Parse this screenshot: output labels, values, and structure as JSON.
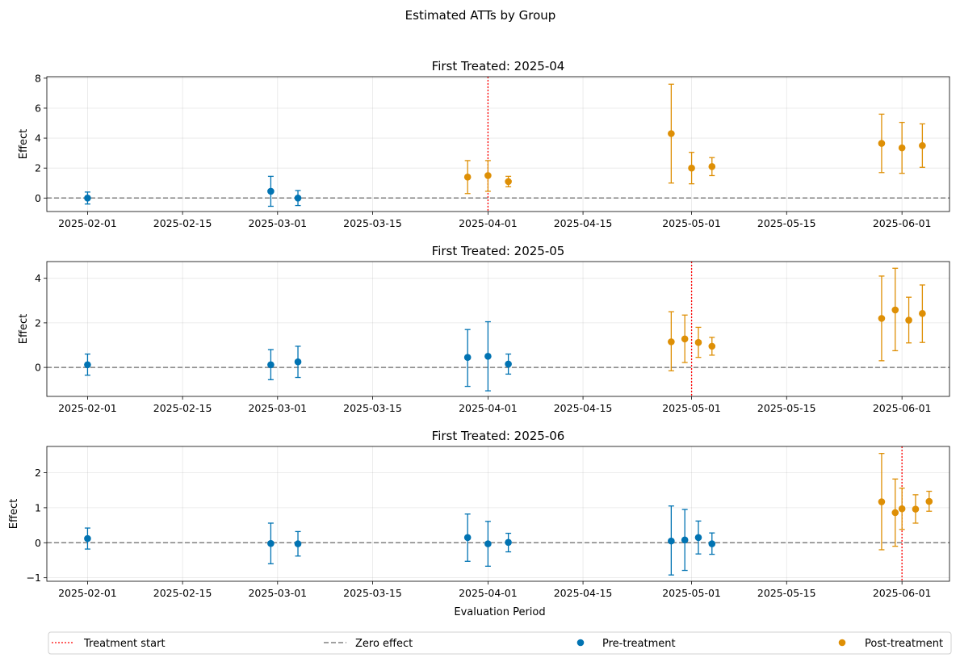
{
  "chart_data": {
    "type": "scatter",
    "title": "Estimated ATTs by Group",
    "xlabel": "Evaluation Period",
    "ylabel": "Effect",
    "x_range": [
      "2025-01-26",
      "2025-06-08"
    ],
    "x_ticks": [
      "2025-02-01",
      "2025-02-15",
      "2025-03-01",
      "2025-03-15",
      "2025-04-01",
      "2025-04-15",
      "2025-05-01",
      "2025-05-15",
      "2025-06-01"
    ],
    "grid": true,
    "legend": {
      "position": "bottom",
      "entries": [
        {
          "label": "Treatment start",
          "kind": "dotted-line",
          "color": "#ff0000"
        },
        {
          "label": "Zero effect",
          "kind": "dashed-line",
          "color": "#808080"
        },
        {
          "label": "Pre-treatment",
          "kind": "marker",
          "color": "#0173b2"
        },
        {
          "label": "Post-treatment",
          "kind": "marker",
          "color": "#de8f05"
        }
      ]
    },
    "colors": {
      "pre": "#0173b2",
      "post": "#de8f05",
      "treatment": "#ff0000",
      "zero": "#808080"
    },
    "panels": [
      {
        "title": "First Treated: 2025-04",
        "treatment_date": "2025-04-01",
        "ylim": [
          -0.9,
          8.1
        ],
        "yticks": [
          0,
          2,
          4,
          6,
          8
        ],
        "points": [
          {
            "date": "2025-02-01",
            "value": 0.0,
            "low": -0.4,
            "high": 0.4,
            "phase": "pre"
          },
          {
            "date": "2025-02-28",
            "value": 0.45,
            "low": -0.55,
            "high": 1.45,
            "phase": "pre"
          },
          {
            "date": "2025-03-04",
            "value": 0.0,
            "low": -0.5,
            "high": 0.5,
            "phase": "pre"
          },
          {
            "date": "2025-03-29",
            "value": 1.4,
            "low": 0.3,
            "high": 2.5,
            "phase": "post"
          },
          {
            "date": "2025-04-01",
            "value": 1.5,
            "low": 0.45,
            "high": 2.5,
            "phase": "post"
          },
          {
            "date": "2025-04-04",
            "value": 1.1,
            "low": 0.75,
            "high": 1.45,
            "phase": "post"
          },
          {
            "date": "2025-04-28",
            "value": 4.3,
            "low": 1.0,
            "high": 7.6,
            "phase": "post"
          },
          {
            "date": "2025-05-01",
            "value": 2.0,
            "low": 0.95,
            "high": 3.05,
            "phase": "post"
          },
          {
            "date": "2025-05-04",
            "value": 2.1,
            "low": 1.5,
            "high": 2.7,
            "phase": "post"
          },
          {
            "date": "2025-05-29",
            "value": 3.65,
            "low": 1.7,
            "high": 5.6,
            "phase": "post"
          },
          {
            "date": "2025-06-01",
            "value": 3.35,
            "low": 1.65,
            "high": 5.05,
            "phase": "post"
          },
          {
            "date": "2025-06-04",
            "value": 3.5,
            "low": 2.05,
            "high": 4.95,
            "phase": "post"
          }
        ]
      },
      {
        "title": "First Treated: 2025-05",
        "treatment_date": "2025-05-01",
        "ylim": [
          -1.3,
          4.75
        ],
        "yticks": [
          0,
          2,
          4
        ],
        "points": [
          {
            "date": "2025-02-01",
            "value": 0.12,
            "low": -0.35,
            "high": 0.6,
            "phase": "pre"
          },
          {
            "date": "2025-02-28",
            "value": 0.12,
            "low": -0.55,
            "high": 0.8,
            "phase": "pre"
          },
          {
            "date": "2025-03-04",
            "value": 0.25,
            "low": -0.45,
            "high": 0.95,
            "phase": "pre"
          },
          {
            "date": "2025-03-29",
            "value": 0.45,
            "low": -0.85,
            "high": 1.7,
            "phase": "pre"
          },
          {
            "date": "2025-04-01",
            "value": 0.5,
            "low": -1.05,
            "high": 2.05,
            "phase": "pre"
          },
          {
            "date": "2025-04-04",
            "value": 0.15,
            "low": -0.3,
            "high": 0.6,
            "phase": "pre"
          },
          {
            "date": "2025-04-28",
            "value": 1.15,
            "low": -0.15,
            "high": 2.5,
            "phase": "post"
          },
          {
            "date": "2025-04-30",
            "value": 1.28,
            "low": 0.22,
            "high": 2.35,
            "phase": "post"
          },
          {
            "date": "2025-05-02",
            "value": 1.12,
            "low": 0.45,
            "high": 1.8,
            "phase": "post"
          },
          {
            "date": "2025-05-04",
            "value": 0.95,
            "low": 0.55,
            "high": 1.35,
            "phase": "post"
          },
          {
            "date": "2025-05-29",
            "value": 2.2,
            "low": 0.3,
            "high": 4.1,
            "phase": "post"
          },
          {
            "date": "2025-05-31",
            "value": 2.58,
            "low": 0.75,
            "high": 4.45,
            "phase": "post"
          },
          {
            "date": "2025-06-02",
            "value": 2.12,
            "low": 1.1,
            "high": 3.15,
            "phase": "post"
          },
          {
            "date": "2025-06-04",
            "value": 2.42,
            "low": 1.12,
            "high": 3.7,
            "phase": "post"
          }
        ]
      },
      {
        "title": "First Treated: 2025-06",
        "treatment_date": "2025-06-01",
        "ylim": [
          -1.1,
          2.75
        ],
        "yticks": [
          -1,
          0,
          1,
          2
        ],
        "points": [
          {
            "date": "2025-02-01",
            "value": 0.12,
            "low": -0.18,
            "high": 0.42,
            "phase": "pre"
          },
          {
            "date": "2025-02-28",
            "value": -0.02,
            "low": -0.6,
            "high": 0.56,
            "phase": "pre"
          },
          {
            "date": "2025-03-04",
            "value": -0.03,
            "low": -0.38,
            "high": 0.32,
            "phase": "pre"
          },
          {
            "date": "2025-03-29",
            "value": 0.15,
            "low": -0.53,
            "high": 0.82,
            "phase": "pre"
          },
          {
            "date": "2025-04-01",
            "value": -0.03,
            "low": -0.67,
            "high": 0.61,
            "phase": "pre"
          },
          {
            "date": "2025-04-04",
            "value": 0.01,
            "low": -0.26,
            "high": 0.27,
            "phase": "pre"
          },
          {
            "date": "2025-04-28",
            "value": 0.05,
            "low": -0.92,
            "high": 1.05,
            "phase": "pre"
          },
          {
            "date": "2025-04-30",
            "value": 0.08,
            "low": -0.79,
            "high": 0.95,
            "phase": "pre"
          },
          {
            "date": "2025-05-02",
            "value": 0.15,
            "low": -0.32,
            "high": 0.62,
            "phase": "pre"
          },
          {
            "date": "2025-05-04",
            "value": -0.03,
            "low": -0.33,
            "high": 0.28,
            "phase": "pre"
          },
          {
            "date": "2025-05-29",
            "value": 1.17,
            "low": -0.2,
            "high": 2.55,
            "phase": "post"
          },
          {
            "date": "2025-05-31",
            "value": 0.86,
            "low": -0.1,
            "high": 1.82,
            "phase": "post"
          },
          {
            "date": "2025-06-01",
            "value": 0.97,
            "low": 0.38,
            "high": 1.56,
            "phase": "post"
          },
          {
            "date": "2025-06-03",
            "value": 0.96,
            "low": 0.56,
            "high": 1.37,
            "phase": "post"
          },
          {
            "date": "2025-06-05",
            "value": 1.18,
            "low": 0.9,
            "high": 1.47,
            "phase": "post"
          }
        ]
      }
    ]
  }
}
